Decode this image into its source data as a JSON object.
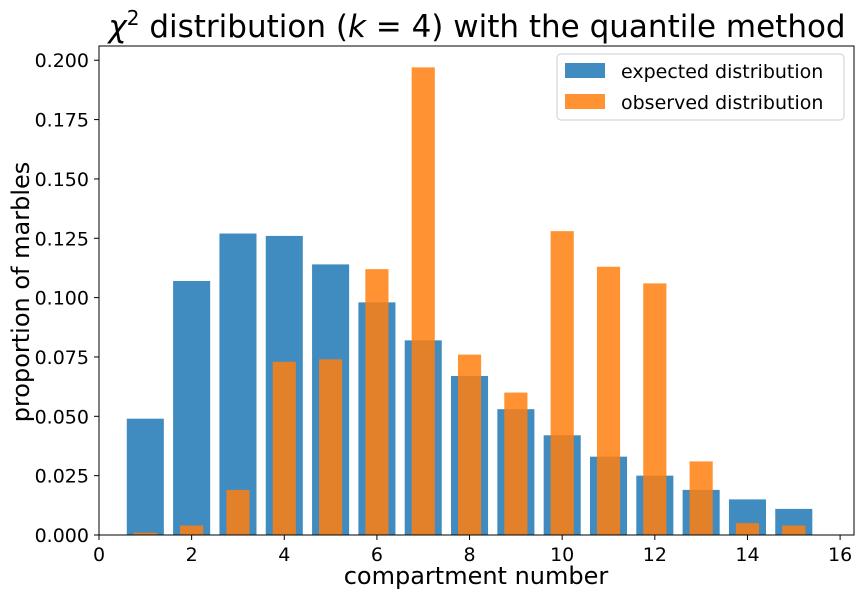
{
  "chart_data": {
    "type": "bar",
    "title_parts": {
      "symbol": "χ",
      "superscript": "2",
      "text_before_k": " distribution (",
      "k_symbol": "k",
      "k_value": " = 4)",
      "text_after": " with the quantile method"
    },
    "xlabel": "compartment number",
    "ylabel": "proportion of marbles",
    "xlim": [
      0,
      16.3
    ],
    "ylim": [
      0,
      0.206
    ],
    "x_ticks": [
      0,
      2,
      4,
      6,
      8,
      10,
      12,
      14,
      16
    ],
    "y_ticks": [
      0.0,
      0.025,
      0.05,
      0.075,
      0.1,
      0.125,
      0.15,
      0.175,
      0.2
    ],
    "y_tick_labels": [
      "0.000",
      "0.025",
      "0.050",
      "0.075",
      "0.100",
      "0.125",
      "0.150",
      "0.175",
      "0.200"
    ],
    "legend_position": "top-right",
    "series": [
      {
        "name": "expected distribution",
        "color": "#1f77b4",
        "bar_width": 0.8,
        "x": [
          1,
          2,
          3,
          4,
          5,
          6,
          7,
          8,
          9,
          10,
          11,
          12,
          13,
          14,
          15
        ],
        "values": [
          0.049,
          0.107,
          0.127,
          0.126,
          0.114,
          0.098,
          0.082,
          0.067,
          0.053,
          0.042,
          0.033,
          0.025,
          0.019,
          0.015,
          0.011
        ]
      },
      {
        "name": "observed distribution",
        "color": "#ff7f0e",
        "bar_width": 0.5,
        "x": [
          1,
          2,
          3,
          4,
          5,
          6,
          7,
          8,
          9,
          10,
          11,
          12,
          13,
          14,
          15
        ],
        "values": [
          0.001,
          0.004,
          0.019,
          0.073,
          0.074,
          0.112,
          0.197,
          0.076,
          0.06,
          0.128,
          0.113,
          0.106,
          0.031,
          0.005,
          0.004
        ]
      }
    ]
  }
}
